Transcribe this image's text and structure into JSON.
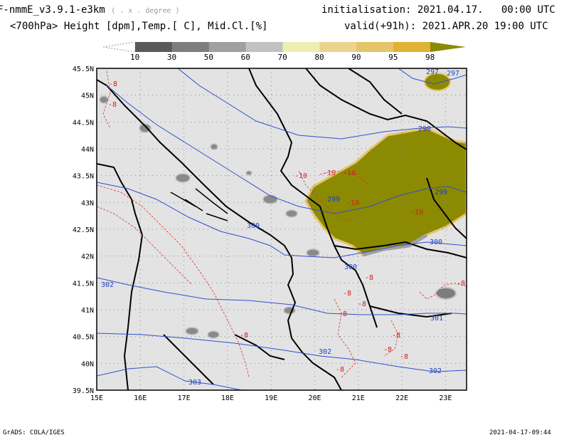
{
  "header": {
    "model": "F-nmmE_v3.9.1-e3km",
    "projection": "( . x . degree )",
    "init_label": "initialisation:",
    "init_value": "2021.04.17.   00:00 UTC",
    "subtitle": "<700hPa> Height [dpm],Temp.[ C], Mid.Cl.[%]",
    "valid_label": "valid(+91h):",
    "valid_value": "2021.APR.20 19:00 UTC"
  },
  "colorbar": {
    "labels": [
      "10",
      "30",
      "50",
      "60",
      "70",
      "80",
      "90",
      "95",
      "98"
    ],
    "colors": [
      "#5a5a5a",
      "#7d7d7d",
      "#a0a0a0",
      "#c2c2c2",
      "#eeeeb0",
      "#ecd38c",
      "#e6c46a",
      "#e0b232",
      "#8c8a00"
    ]
  },
  "map": {
    "lat_labels": [
      "45.5N",
      "45N",
      "44.5N",
      "44N",
      "43.5N",
      "43N",
      "42.5N",
      "42N",
      "41.5N",
      "41N",
      "40.5N",
      "40N",
      "39.5N"
    ],
    "lon_labels": [
      "15E",
      "16E",
      "17E",
      "18E",
      "19E",
      "20E",
      "21E",
      "22E",
      "23E"
    ],
    "height_labels": [
      "297",
      "297",
      "298",
      "299",
      "299",
      "300",
      "300",
      "300",
      "301",
      "302",
      "302",
      "302",
      "303"
    ],
    "temp_labels": [
      "-8",
      "-8",
      "-10",
      "-10",
      "-10",
      "-10",
      "-8",
      "-8",
      "-8",
      "-8",
      "-8",
      "-8",
      "-8",
      "-8",
      "-8",
      "-8",
      "-10"
    ]
  },
  "footer": {
    "left": "GrADS: COLA/IGES",
    "right": "2021-04-17-09:44"
  }
}
